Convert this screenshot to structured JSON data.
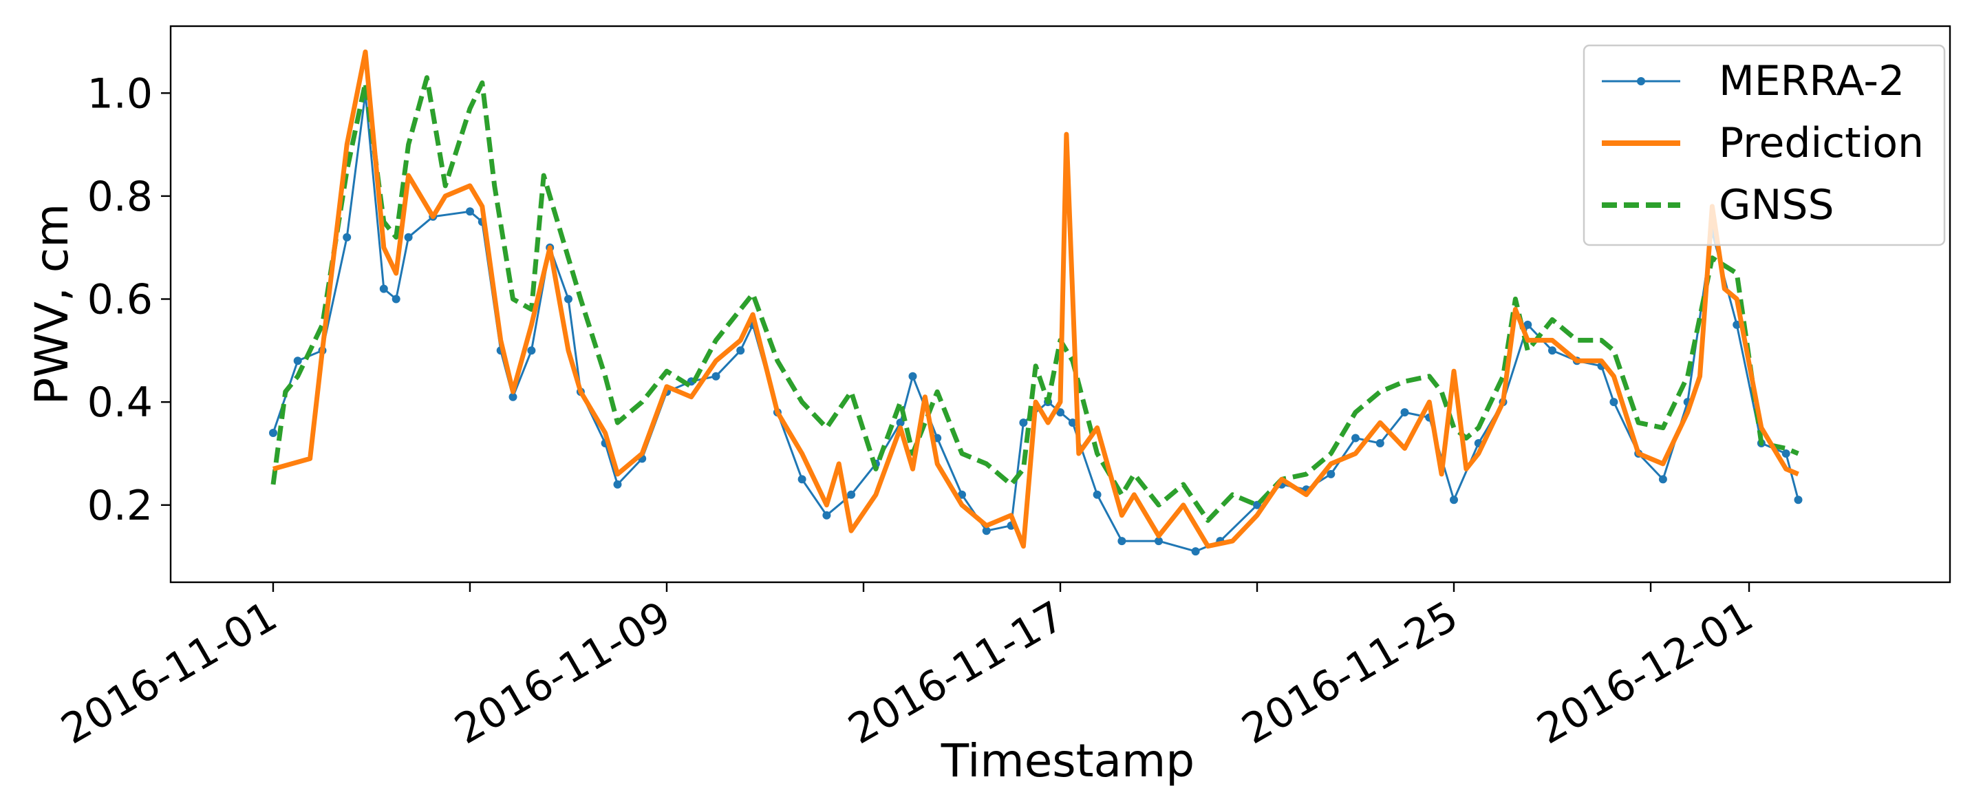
{
  "chart_data": {
    "type": "line",
    "title": "",
    "xlabel": "Timestamp",
    "ylabel": "PWV, cm",
    "x_type": "date",
    "xlim": [
      "2016-10-29T22:00",
      "2016-12-05T02:00"
    ],
    "ylim": [
      0.05,
      1.13
    ],
    "x_ticks": [
      "2016-11-01",
      "2016-11-05",
      "2016-11-09",
      "2016-11-13",
      "2016-11-17",
      "2016-11-21",
      "2016-11-25",
      "2016-11-29",
      "2016-12-01"
    ],
    "x_tick_labels": [
      "2016-11-01",
      "",
      "2016-11-09",
      "",
      "2016-11-17",
      "",
      "2016-11-25",
      "",
      "2016-12-01"
    ],
    "y_ticks": [
      0.2,
      0.4,
      0.6,
      0.8,
      1.0
    ],
    "y_tick_labels": [
      "0.2",
      "0.4",
      "0.6",
      "0.8",
      "1.0"
    ],
    "grid": false,
    "legend_position": "top-right",
    "series": [
      {
        "name": "MERRA-2",
        "color": "#1f77b4",
        "style": "solid-with-markers",
        "points": [
          [
            "2016-11-01T00:00",
            0.34
          ],
          [
            "2016-11-01T12:00",
            0.48
          ],
          [
            "2016-11-02T00:00",
            0.5
          ],
          [
            "2016-11-02T12:00",
            0.72
          ],
          [
            "2016-11-02T21:00",
            1.0
          ],
          [
            "2016-11-03T06:00",
            0.62
          ],
          [
            "2016-11-03T12:00",
            0.6
          ],
          [
            "2016-11-03T18:00",
            0.72
          ],
          [
            "2016-11-04T06:00",
            0.76
          ],
          [
            "2016-11-05T00:00",
            0.77
          ],
          [
            "2016-11-05T06:00",
            0.75
          ],
          [
            "2016-11-05T15:00",
            0.5
          ],
          [
            "2016-11-05T21:00",
            0.41
          ],
          [
            "2016-11-06T06:00",
            0.5
          ],
          [
            "2016-11-06T15:00",
            0.7
          ],
          [
            "2016-11-07T00:00",
            0.6
          ],
          [
            "2016-11-07T06:00",
            0.42
          ],
          [
            "2016-11-07T18:00",
            0.32
          ],
          [
            "2016-11-08T00:00",
            0.24
          ],
          [
            "2016-11-08T12:00",
            0.29
          ],
          [
            "2016-11-09T00:00",
            0.42
          ],
          [
            "2016-11-09T12:00",
            0.44
          ],
          [
            "2016-11-10T00:00",
            0.45
          ],
          [
            "2016-11-10T12:00",
            0.5
          ],
          [
            "2016-11-10T18:00",
            0.55
          ],
          [
            "2016-11-11T06:00",
            0.38
          ],
          [
            "2016-11-11T18:00",
            0.25
          ],
          [
            "2016-11-12T06:00",
            0.18
          ],
          [
            "2016-11-12T18:00",
            0.22
          ],
          [
            "2016-11-13T06:00",
            0.28
          ],
          [
            "2016-11-13T18:00",
            0.36
          ],
          [
            "2016-11-14T00:00",
            0.45
          ],
          [
            "2016-11-14T12:00",
            0.33
          ],
          [
            "2016-11-15T00:00",
            0.22
          ],
          [
            "2016-11-15T12:00",
            0.15
          ],
          [
            "2016-11-16T00:00",
            0.16
          ],
          [
            "2016-11-16T06:00",
            0.36
          ],
          [
            "2016-11-16T18:00",
            0.4
          ],
          [
            "2016-11-17T00:00",
            0.38
          ],
          [
            "2016-11-17T06:00",
            0.36
          ],
          [
            "2016-11-17T18:00",
            0.22
          ],
          [
            "2016-11-18T06:00",
            0.13
          ],
          [
            "2016-11-19T00:00",
            0.13
          ],
          [
            "2016-11-19T18:00",
            0.11
          ],
          [
            "2016-11-20T06:00",
            0.13
          ],
          [
            "2016-11-21T00:00",
            0.2
          ],
          [
            "2016-11-21T12:00",
            0.24
          ],
          [
            "2016-11-22T00:00",
            0.23
          ],
          [
            "2016-11-22T12:00",
            0.26
          ],
          [
            "2016-11-23T00:00",
            0.33
          ],
          [
            "2016-11-23T12:00",
            0.32
          ],
          [
            "2016-11-24T00:00",
            0.38
          ],
          [
            "2016-11-24T12:00",
            0.37
          ],
          [
            "2016-11-25T00:00",
            0.21
          ],
          [
            "2016-11-25T12:00",
            0.32
          ],
          [
            "2016-11-26T00:00",
            0.4
          ],
          [
            "2016-11-26T12:00",
            0.55
          ],
          [
            "2016-11-27T00:00",
            0.5
          ],
          [
            "2016-11-27T12:00",
            0.48
          ],
          [
            "2016-11-28T00:00",
            0.47
          ],
          [
            "2016-11-28T06:00",
            0.4
          ],
          [
            "2016-11-28T18:00",
            0.3
          ],
          [
            "2016-11-29T06:00",
            0.25
          ],
          [
            "2016-11-29T18:00",
            0.4
          ],
          [
            "2016-11-30T06:00",
            0.73
          ],
          [
            "2016-11-30T18:00",
            0.55
          ],
          [
            "2016-12-01T06:00",
            0.32
          ],
          [
            "2016-12-01T18:00",
            0.3
          ],
          [
            "2016-12-02T00:00",
            0.21
          ]
        ]
      },
      {
        "name": "Prediction",
        "color": "#ff7f0e",
        "style": "solid",
        "points": [
          [
            "2016-11-01T00:00",
            0.27
          ],
          [
            "2016-11-01T18:00",
            0.29
          ],
          [
            "2016-11-02T00:00",
            0.5
          ],
          [
            "2016-11-02T12:00",
            0.9
          ],
          [
            "2016-11-02T21:00",
            1.08
          ],
          [
            "2016-11-03T06:00",
            0.7
          ],
          [
            "2016-11-03T12:00",
            0.65
          ],
          [
            "2016-11-03T18:00",
            0.84
          ],
          [
            "2016-11-04T06:00",
            0.76
          ],
          [
            "2016-11-04T12:00",
            0.8
          ],
          [
            "2016-11-05T00:00",
            0.82
          ],
          [
            "2016-11-05T06:00",
            0.78
          ],
          [
            "2016-11-05T15:00",
            0.52
          ],
          [
            "2016-11-05T21:00",
            0.42
          ],
          [
            "2016-11-06T06:00",
            0.55
          ],
          [
            "2016-11-06T15:00",
            0.7
          ],
          [
            "2016-11-07T00:00",
            0.5
          ],
          [
            "2016-11-07T06:00",
            0.42
          ],
          [
            "2016-11-07T18:00",
            0.34
          ],
          [
            "2016-11-08T00:00",
            0.26
          ],
          [
            "2016-11-08T12:00",
            0.3
          ],
          [
            "2016-11-09T00:00",
            0.43
          ],
          [
            "2016-11-09T12:00",
            0.41
          ],
          [
            "2016-11-10T00:00",
            0.48
          ],
          [
            "2016-11-10T12:00",
            0.52
          ],
          [
            "2016-11-10T18:00",
            0.57
          ],
          [
            "2016-11-11T06:00",
            0.38
          ],
          [
            "2016-11-11T18:00",
            0.3
          ],
          [
            "2016-11-12T06:00",
            0.2
          ],
          [
            "2016-11-12T12:00",
            0.28
          ],
          [
            "2016-11-12T18:00",
            0.15
          ],
          [
            "2016-11-13T06:00",
            0.22
          ],
          [
            "2016-11-13T18:00",
            0.35
          ],
          [
            "2016-11-14T00:00",
            0.27
          ],
          [
            "2016-11-14T06:00",
            0.41
          ],
          [
            "2016-11-14T12:00",
            0.28
          ],
          [
            "2016-11-15T00:00",
            0.2
          ],
          [
            "2016-11-15T12:00",
            0.16
          ],
          [
            "2016-11-16T00:00",
            0.18
          ],
          [
            "2016-11-16T06:00",
            0.12
          ],
          [
            "2016-11-16T12:00",
            0.4
          ],
          [
            "2016-11-16T18:00",
            0.36
          ],
          [
            "2016-11-17T00:00",
            0.4
          ],
          [
            "2016-11-17T03:00",
            0.92
          ],
          [
            "2016-11-17T09:00",
            0.3
          ],
          [
            "2016-11-17T18:00",
            0.35
          ],
          [
            "2016-11-18T06:00",
            0.18
          ],
          [
            "2016-11-18T12:00",
            0.22
          ],
          [
            "2016-11-19T00:00",
            0.14
          ],
          [
            "2016-11-19T12:00",
            0.2
          ],
          [
            "2016-11-20T00:00",
            0.12
          ],
          [
            "2016-11-20T12:00",
            0.13
          ],
          [
            "2016-11-21T00:00",
            0.18
          ],
          [
            "2016-11-21T12:00",
            0.25
          ],
          [
            "2016-11-22T00:00",
            0.22
          ],
          [
            "2016-11-22T12:00",
            0.28
          ],
          [
            "2016-11-23T00:00",
            0.3
          ],
          [
            "2016-11-23T12:00",
            0.36
          ],
          [
            "2016-11-24T00:00",
            0.31
          ],
          [
            "2016-11-24T12:00",
            0.4
          ],
          [
            "2016-11-24T18:00",
            0.26
          ],
          [
            "2016-11-25T00:00",
            0.46
          ],
          [
            "2016-11-25T06:00",
            0.27
          ],
          [
            "2016-11-25T12:00",
            0.3
          ],
          [
            "2016-11-26T00:00",
            0.4
          ],
          [
            "2016-11-26T06:00",
            0.58
          ],
          [
            "2016-11-26T12:00",
            0.52
          ],
          [
            "2016-11-27T00:00",
            0.52
          ],
          [
            "2016-11-27T12:00",
            0.48
          ],
          [
            "2016-11-28T00:00",
            0.48
          ],
          [
            "2016-11-28T06:00",
            0.45
          ],
          [
            "2016-11-28T18:00",
            0.3
          ],
          [
            "2016-11-29T06:00",
            0.28
          ],
          [
            "2016-11-29T18:00",
            0.38
          ],
          [
            "2016-11-30T00:00",
            0.45
          ],
          [
            "2016-11-30T06:00",
            0.78
          ],
          [
            "2016-11-30T12:00",
            0.62
          ],
          [
            "2016-11-30T18:00",
            0.6
          ],
          [
            "2016-12-01T06:00",
            0.35
          ],
          [
            "2016-12-01T18:00",
            0.27
          ],
          [
            "2016-12-02T00:00",
            0.26
          ]
        ]
      },
      {
        "name": "GNSS",
        "color": "#2ca02c",
        "style": "dashed",
        "points": [
          [
            "2016-11-01T00:00",
            0.24
          ],
          [
            "2016-11-01T06:00",
            0.42
          ],
          [
            "2016-11-01T12:00",
            0.45
          ],
          [
            "2016-11-02T00:00",
            0.55
          ],
          [
            "2016-11-02T12:00",
            0.85
          ],
          [
            "2016-11-02T21:00",
            1.02
          ],
          [
            "2016-11-03T06:00",
            0.75
          ],
          [
            "2016-11-03T12:00",
            0.72
          ],
          [
            "2016-11-03T18:00",
            0.9
          ],
          [
            "2016-11-04T03:00",
            1.03
          ],
          [
            "2016-11-04T12:00",
            0.82
          ],
          [
            "2016-11-05T00:00",
            0.97
          ],
          [
            "2016-11-05T06:00",
            1.02
          ],
          [
            "2016-11-05T12:00",
            0.82
          ],
          [
            "2016-11-05T21:00",
            0.6
          ],
          [
            "2016-11-06T06:00",
            0.58
          ],
          [
            "2016-11-06T12:00",
            0.84
          ],
          [
            "2016-11-07T00:00",
            0.68
          ],
          [
            "2016-11-07T06:00",
            0.6
          ],
          [
            "2016-11-07T18:00",
            0.45
          ],
          [
            "2016-11-08T00:00",
            0.36
          ],
          [
            "2016-11-08T12:00",
            0.4
          ],
          [
            "2016-11-09T00:00",
            0.46
          ],
          [
            "2016-11-09T12:00",
            0.43
          ],
          [
            "2016-11-10T00:00",
            0.52
          ],
          [
            "2016-11-10T12:00",
            0.58
          ],
          [
            "2016-11-10T18:00",
            0.61
          ],
          [
            "2016-11-11T06:00",
            0.48
          ],
          [
            "2016-11-11T18:00",
            0.4
          ],
          [
            "2016-11-12T06:00",
            0.35
          ],
          [
            "2016-11-12T18:00",
            0.42
          ],
          [
            "2016-11-13T06:00",
            0.27
          ],
          [
            "2016-11-13T18:00",
            0.4
          ],
          [
            "2016-11-14T00:00",
            0.3
          ],
          [
            "2016-11-14T12:00",
            0.42
          ],
          [
            "2016-11-15T00:00",
            0.3
          ],
          [
            "2016-11-15T12:00",
            0.28
          ],
          [
            "2016-11-16T00:00",
            0.24
          ],
          [
            "2016-11-16T06:00",
            0.27
          ],
          [
            "2016-11-16T12:00",
            0.47
          ],
          [
            "2016-11-16T18:00",
            0.4
          ],
          [
            "2016-11-17T00:00",
            0.52
          ],
          [
            "2016-11-17T06:00",
            0.48
          ],
          [
            "2016-11-17T18:00",
            0.3
          ],
          [
            "2016-11-18T06:00",
            0.22
          ],
          [
            "2016-11-18T12:00",
            0.26
          ],
          [
            "2016-11-19T00:00",
            0.2
          ],
          [
            "2016-11-19T12:00",
            0.24
          ],
          [
            "2016-11-20T00:00",
            0.17
          ],
          [
            "2016-11-20T12:00",
            0.22
          ],
          [
            "2016-11-21T00:00",
            0.2
          ],
          [
            "2016-11-21T12:00",
            0.25
          ],
          [
            "2016-11-22T00:00",
            0.26
          ],
          [
            "2016-11-22T12:00",
            0.3
          ],
          [
            "2016-11-23T00:00",
            0.38
          ],
          [
            "2016-11-23T12:00",
            0.42
          ],
          [
            "2016-11-24T00:00",
            0.44
          ],
          [
            "2016-11-24T12:00",
            0.45
          ],
          [
            "2016-11-24T18:00",
            0.42
          ],
          [
            "2016-11-25T00:00",
            0.35
          ],
          [
            "2016-11-25T06:00",
            0.33
          ],
          [
            "2016-11-25T12:00",
            0.35
          ],
          [
            "2016-11-26T00:00",
            0.45
          ],
          [
            "2016-11-26T06:00",
            0.6
          ],
          [
            "2016-11-26T12:00",
            0.5
          ],
          [
            "2016-11-27T00:00",
            0.56
          ],
          [
            "2016-11-27T12:00",
            0.52
          ],
          [
            "2016-11-28T00:00",
            0.52
          ],
          [
            "2016-11-28T06:00",
            0.5
          ],
          [
            "2016-11-28T18:00",
            0.36
          ],
          [
            "2016-11-29T06:00",
            0.35
          ],
          [
            "2016-11-29T18:00",
            0.45
          ],
          [
            "2016-11-30T06:00",
            0.68
          ],
          [
            "2016-11-30T18:00",
            0.65
          ],
          [
            "2016-12-01T06:00",
            0.32
          ],
          [
            "2016-12-01T18:00",
            0.31
          ],
          [
            "2016-12-02T00:00",
            0.3
          ]
        ]
      }
    ]
  }
}
